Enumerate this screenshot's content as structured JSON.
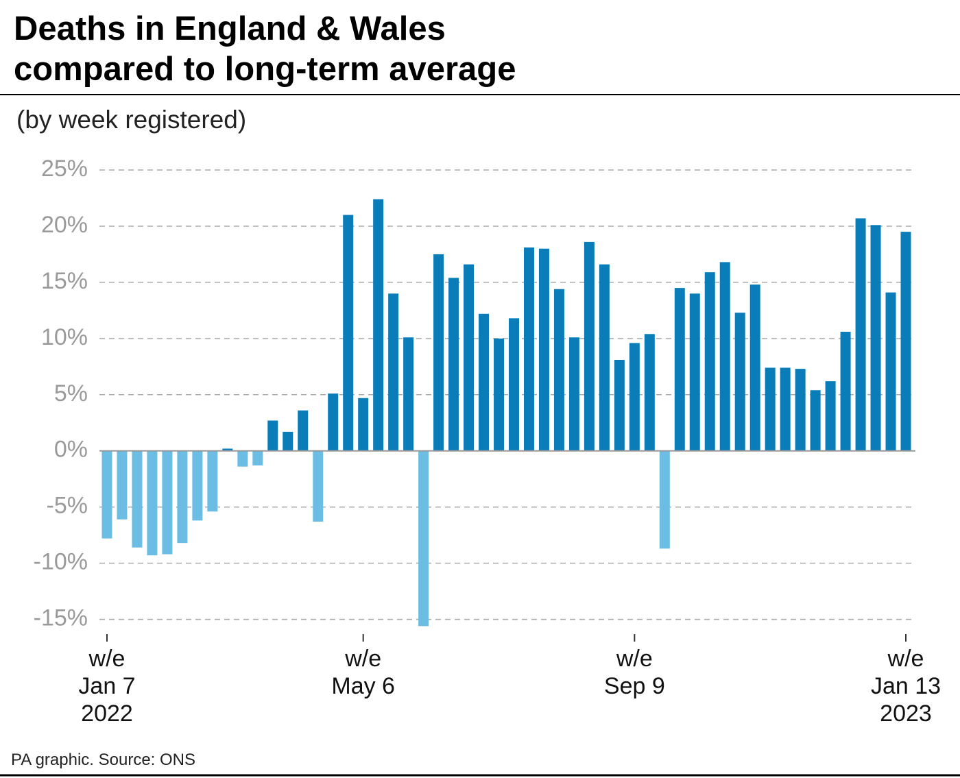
{
  "chart_data": {
    "type": "bar",
    "title": [
      "Deaths in England & Wales",
      "compared to long-term average"
    ],
    "subtitle": "(by week registered)",
    "source": "PA graphic. Source: ONS",
    "categories": [
      [
        "w/e",
        "Jan 7",
        "2022"
      ],
      null,
      null,
      null,
      null,
      null,
      null,
      null,
      null,
      null,
      null,
      null,
      null,
      null,
      null,
      null,
      null,
      [
        "w/e",
        "May 6"
      ],
      null,
      null,
      null,
      null,
      null,
      null,
      null,
      null,
      null,
      null,
      null,
      null,
      null,
      null,
      null,
      null,
      null,
      [
        "w/e",
        "Sep 9"
      ],
      null,
      null,
      null,
      null,
      null,
      null,
      null,
      null,
      null,
      null,
      null,
      null,
      null,
      null,
      null,
      null,
      null,
      [
        "w/e",
        "Jan 13",
        "2023"
      ]
    ],
    "values": [
      -7.8,
      -6.1,
      -8.6,
      -9.3,
      -9.2,
      -8.2,
      -6.2,
      -5.4,
      0.2,
      -1.4,
      -1.3,
      2.7,
      1.7,
      3.6,
      -6.3,
      5.1,
      21.0,
      4.7,
      22.4,
      14.0,
      10.1,
      -15.6,
      17.5,
      15.4,
      16.6,
      12.2,
      10.0,
      11.8,
      18.1,
      18.0,
      14.4,
      10.1,
      18.6,
      16.6,
      8.1,
      9.6,
      10.4,
      -8.7,
      14.5,
      14.0,
      15.9,
      16.8,
      12.3,
      14.8,
      7.4,
      7.4,
      7.3,
      5.4,
      6.2,
      10.6,
      20.7,
      20.1,
      14.1,
      19.5
    ],
    "positive_color": "#0a7db9",
    "negative_color": "#6bbde3",
    "ylim": [
      -16,
      25
    ],
    "yticks": [
      {
        "value": -15,
        "label": "-15%"
      },
      {
        "value": -10,
        "label": "-10%"
      },
      {
        "value": -5,
        "label": "-5%"
      },
      {
        "value": 0,
        "label": "0%"
      },
      {
        "value": 5,
        "label": "5%"
      },
      {
        "value": 10,
        "label": "10%"
      },
      {
        "value": 15,
        "label": "15%"
      },
      {
        "value": 20,
        "label": "20%"
      },
      {
        "value": 25,
        "label": "25%"
      }
    ],
    "grid": true
  }
}
